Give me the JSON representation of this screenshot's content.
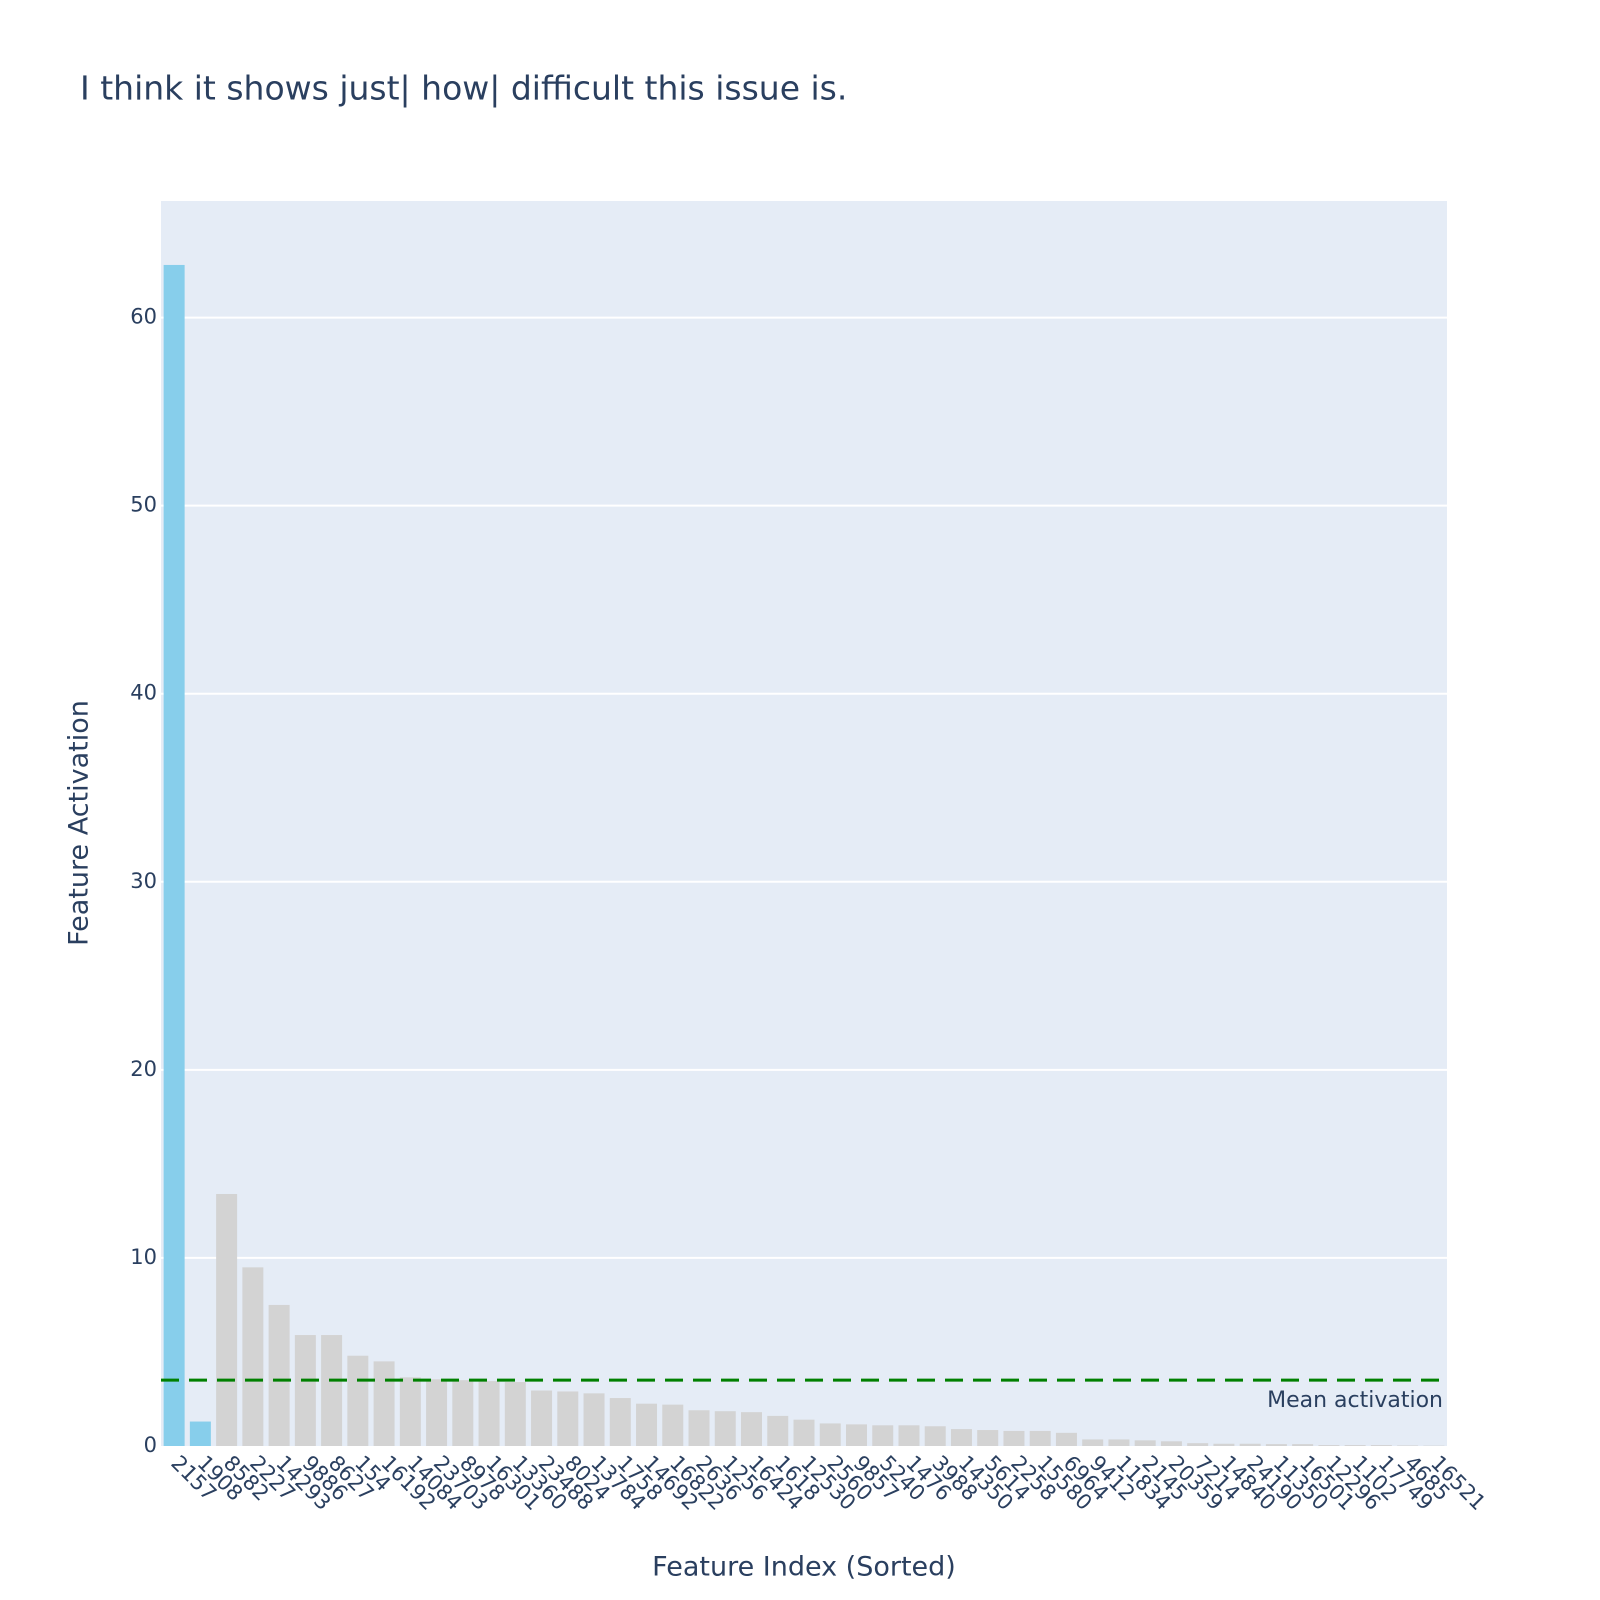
{
  "chart_data": {
    "type": "bar",
    "title": "I think it shows just| how| difficult this issue is.",
    "x_label": "Feature Index (Sorted)",
    "y_label": "Feature Activation",
    "categories": [
      "2157",
      "1908",
      "8582",
      "2227",
      "14293",
      "9886",
      "8627",
      "154",
      "16192",
      "14084",
      "23703",
      "8978",
      "16301",
      "13360",
      "23488",
      "8024",
      "13784",
      "1758",
      "14692",
      "16822",
      "2636",
      "1256",
      "16424",
      "1618",
      "12530",
      "2560",
      "9857",
      "5240",
      "1476",
      "3988",
      "14350",
      "5614",
      "2258",
      "15580",
      "6964",
      "9412",
      "11834",
      "2145",
      "20359",
      "7214",
      "14840",
      "24190",
      "11350",
      "16501",
      "12296",
      "1102",
      "17749",
      "4685",
      "16521"
    ],
    "values": [
      62.8,
      1.3,
      13.4,
      9.5,
      7.5,
      5.9,
      5.9,
      4.8,
      4.5,
      3.65,
      3.55,
      3.5,
      3.45,
      3.4,
      2.95,
      2.9,
      2.8,
      2.55,
      2.25,
      2.2,
      1.9,
      1.85,
      1.8,
      1.6,
      1.4,
      1.2,
      1.15,
      1.1,
      1.1,
      1.05,
      0.9,
      0.85,
      0.8,
      0.8,
      0.7,
      0.35,
      0.35,
      0.3,
      0.25,
      0.15,
      0.12,
      0.12,
      0.1,
      0.1,
      0.05,
      0.05,
      0.05,
      0.03,
      0.02
    ],
    "colors": [
      "#87ceeb",
      "#87ceeb",
      "#d3d3d3",
      "#d3d3d3",
      "#d3d3d3",
      "#d3d3d3",
      "#d3d3d3",
      "#d3d3d3",
      "#d3d3d3",
      "#d3d3d3",
      "#d3d3d3",
      "#d3d3d3",
      "#d3d3d3",
      "#d3d3d3",
      "#d3d3d3",
      "#d3d3d3",
      "#d3d3d3",
      "#d3d3d3",
      "#d3d3d3",
      "#d3d3d3",
      "#d3d3d3",
      "#d3d3d3",
      "#d3d3d3",
      "#d3d3d3",
      "#d3d3d3",
      "#d3d3d3",
      "#d3d3d3",
      "#d3d3d3",
      "#d3d3d3",
      "#d3d3d3",
      "#d3d3d3",
      "#d3d3d3",
      "#d3d3d3",
      "#d3d3d3",
      "#d3d3d3",
      "#d3d3d3",
      "#d3d3d3",
      "#d3d3d3",
      "#d3d3d3",
      "#d3d3d3",
      "#d3d3d3",
      "#d3d3d3",
      "#d3d3d3",
      "#d3d3d3",
      "#d3d3d3",
      "#d3d3d3",
      "#d3d3d3",
      "#d3d3d3",
      "#d3d3d3"
    ],
    "ylim": [
      0,
      66.2
    ],
    "yticks": [
      0,
      10,
      20,
      30,
      40,
      50,
      60
    ],
    "grid": true,
    "mean_line": {
      "value": 3.5,
      "label": "Mean activation",
      "color": "green"
    }
  }
}
